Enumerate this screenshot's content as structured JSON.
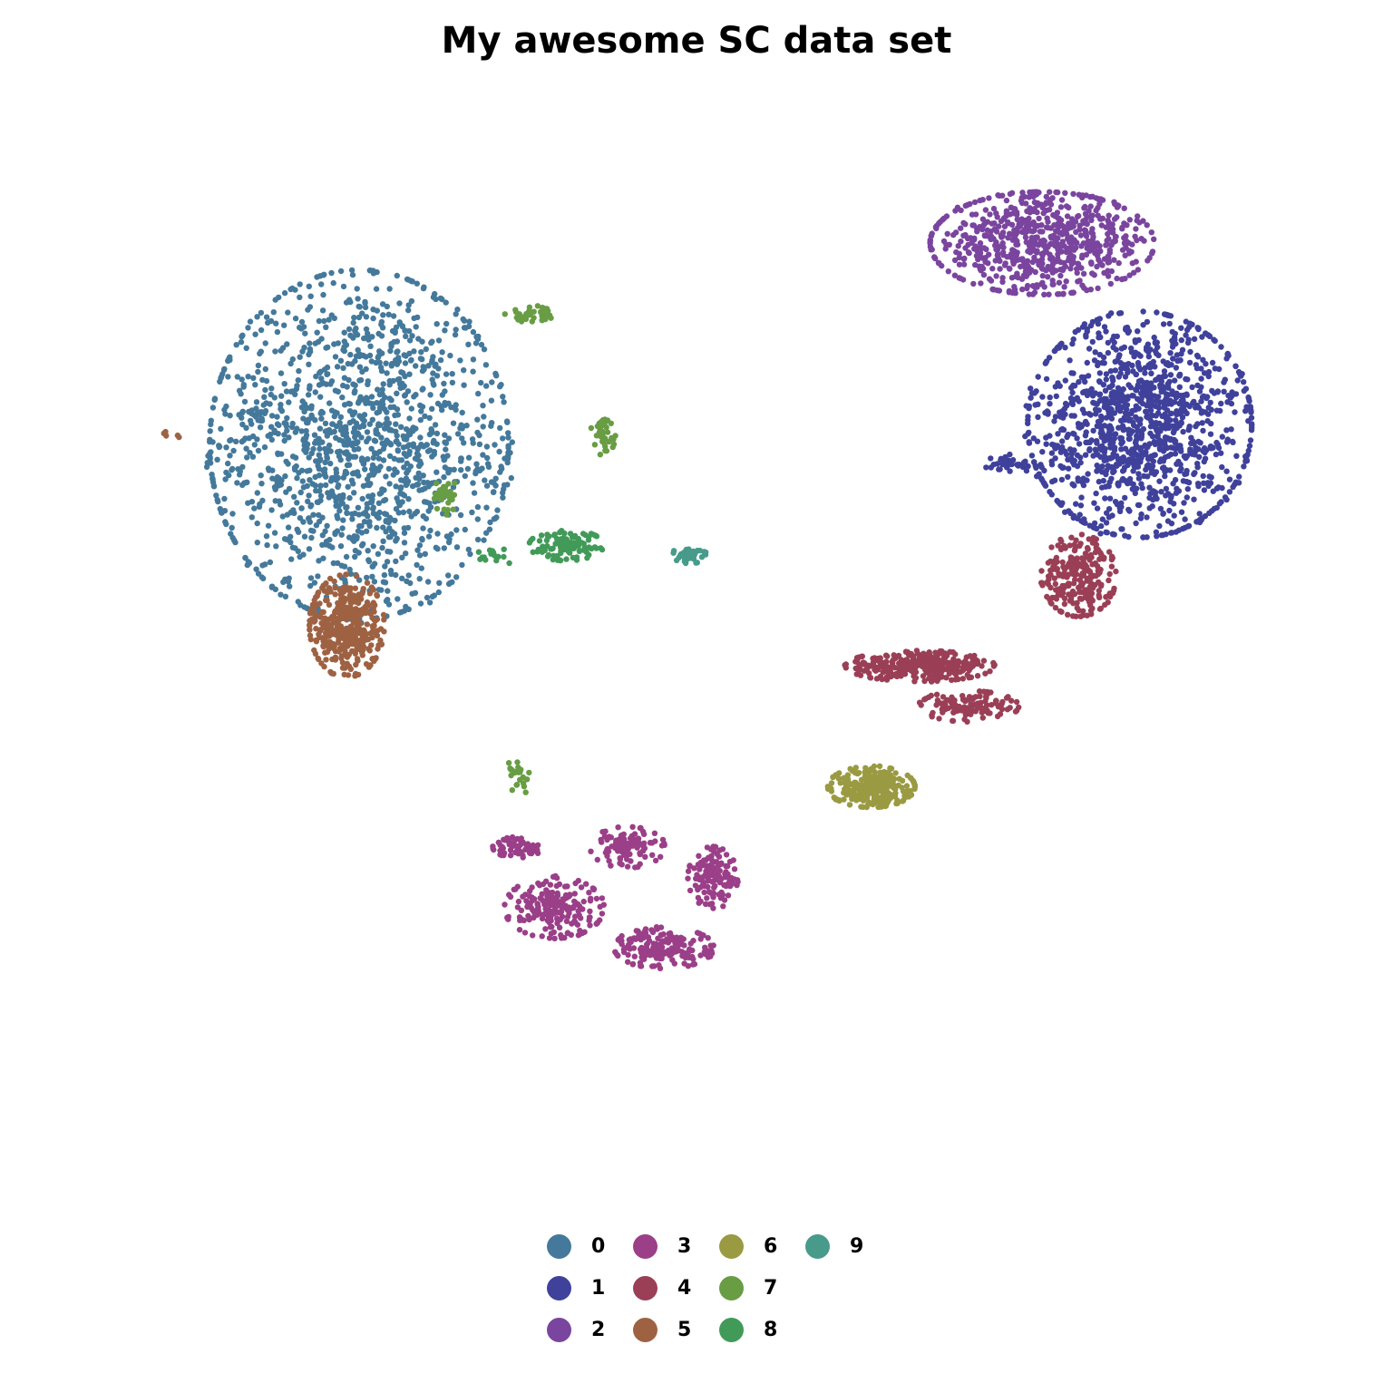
{
  "chart_data": {
    "type": "scatter",
    "title": "My awesome SC data set",
    "xlabel": "",
    "ylabel": "",
    "grid": false,
    "axes_visible": false,
    "xlim": [
      0,
      100
    ],
    "ylim": [
      0,
      100
    ],
    "legend": {
      "placement": "bottom",
      "columns": 4
    },
    "series": [
      {
        "name": "0",
        "color": "#44799b",
        "clusters": [
          {
            "cx": 22,
            "cy": 68,
            "rx": 12,
            "ry": 17,
            "n": 1400
          },
          {
            "cx": 13,
            "cy": 71,
            "rx": 3,
            "ry": 1,
            "n": 20
          },
          {
            "cx": 33,
            "cy": 65,
            "rx": 2,
            "ry": 4,
            "n": 25
          }
        ]
      },
      {
        "name": "1",
        "color": "#3f419b",
        "clusters": [
          {
            "cx": 86,
            "cy": 70,
            "rx": 9,
            "ry": 11,
            "n": 1200
          },
          {
            "cx": 75,
            "cy": 66,
            "rx": 3,
            "ry": 1,
            "n": 40
          }
        ]
      },
      {
        "name": "2",
        "color": "#7a459e",
        "clusters": [
          {
            "cx": 78,
            "cy": 88,
            "rx": 9,
            "ry": 5,
            "n": 700
          }
        ]
      },
      {
        "name": "3",
        "color": "#9a3f88",
        "clusters": [
          {
            "cx": 38,
            "cy": 22,
            "rx": 4,
            "ry": 3,
            "n": 200
          },
          {
            "cx": 47,
            "cy": 18,
            "rx": 4,
            "ry": 2,
            "n": 180
          },
          {
            "cx": 51,
            "cy": 25,
            "rx": 2,
            "ry": 3,
            "n": 120
          },
          {
            "cx": 44,
            "cy": 28,
            "rx": 3,
            "ry": 2,
            "n": 100
          },
          {
            "cx": 35,
            "cy": 28,
            "rx": 2,
            "ry": 1,
            "n": 60
          }
        ]
      },
      {
        "name": "4",
        "color": "#9a3f56",
        "clusters": [
          {
            "cx": 68,
            "cy": 46,
            "rx": 6,
            "ry": 1.5,
            "n": 300
          },
          {
            "cx": 81,
            "cy": 55,
            "rx": 3,
            "ry": 4,
            "n": 250
          },
          {
            "cx": 72,
            "cy": 42,
            "rx": 4,
            "ry": 1.5,
            "n": 120
          }
        ]
      },
      {
        "name": "5",
        "color": "#9e6243",
        "clusters": [
          {
            "cx": 21,
            "cy": 50,
            "rx": 3,
            "ry": 5,
            "n": 400
          },
          {
            "cx": 7,
            "cy": 69,
            "rx": 1,
            "ry": 0.5,
            "n": 5
          }
        ]
      },
      {
        "name": "6",
        "color": "#9a9a42",
        "clusters": [
          {
            "cx": 64,
            "cy": 34,
            "rx": 3.5,
            "ry": 2,
            "n": 250
          }
        ]
      },
      {
        "name": "7",
        "color": "#689d44",
        "clusters": [
          {
            "cx": 36,
            "cy": 81,
            "rx": 2,
            "ry": 0.8,
            "n": 40
          },
          {
            "cx": 42,
            "cy": 69,
            "rx": 1,
            "ry": 2,
            "n": 40
          },
          {
            "cx": 29,
            "cy": 63,
            "rx": 1,
            "ry": 2,
            "n": 30
          },
          {
            "cx": 35,
            "cy": 35,
            "rx": 1,
            "ry": 2,
            "n": 25
          }
        ]
      },
      {
        "name": "8",
        "color": "#429a59",
        "clusters": [
          {
            "cx": 39,
            "cy": 58,
            "rx": 3,
            "ry": 1.5,
            "n": 110
          },
          {
            "cx": 33,
            "cy": 57,
            "rx": 2,
            "ry": 1,
            "n": 15
          }
        ]
      },
      {
        "name": "9",
        "color": "#489b8b",
        "clusters": [
          {
            "cx": 49,
            "cy": 57,
            "rx": 1.5,
            "ry": 0.8,
            "n": 40
          }
        ]
      }
    ]
  }
}
